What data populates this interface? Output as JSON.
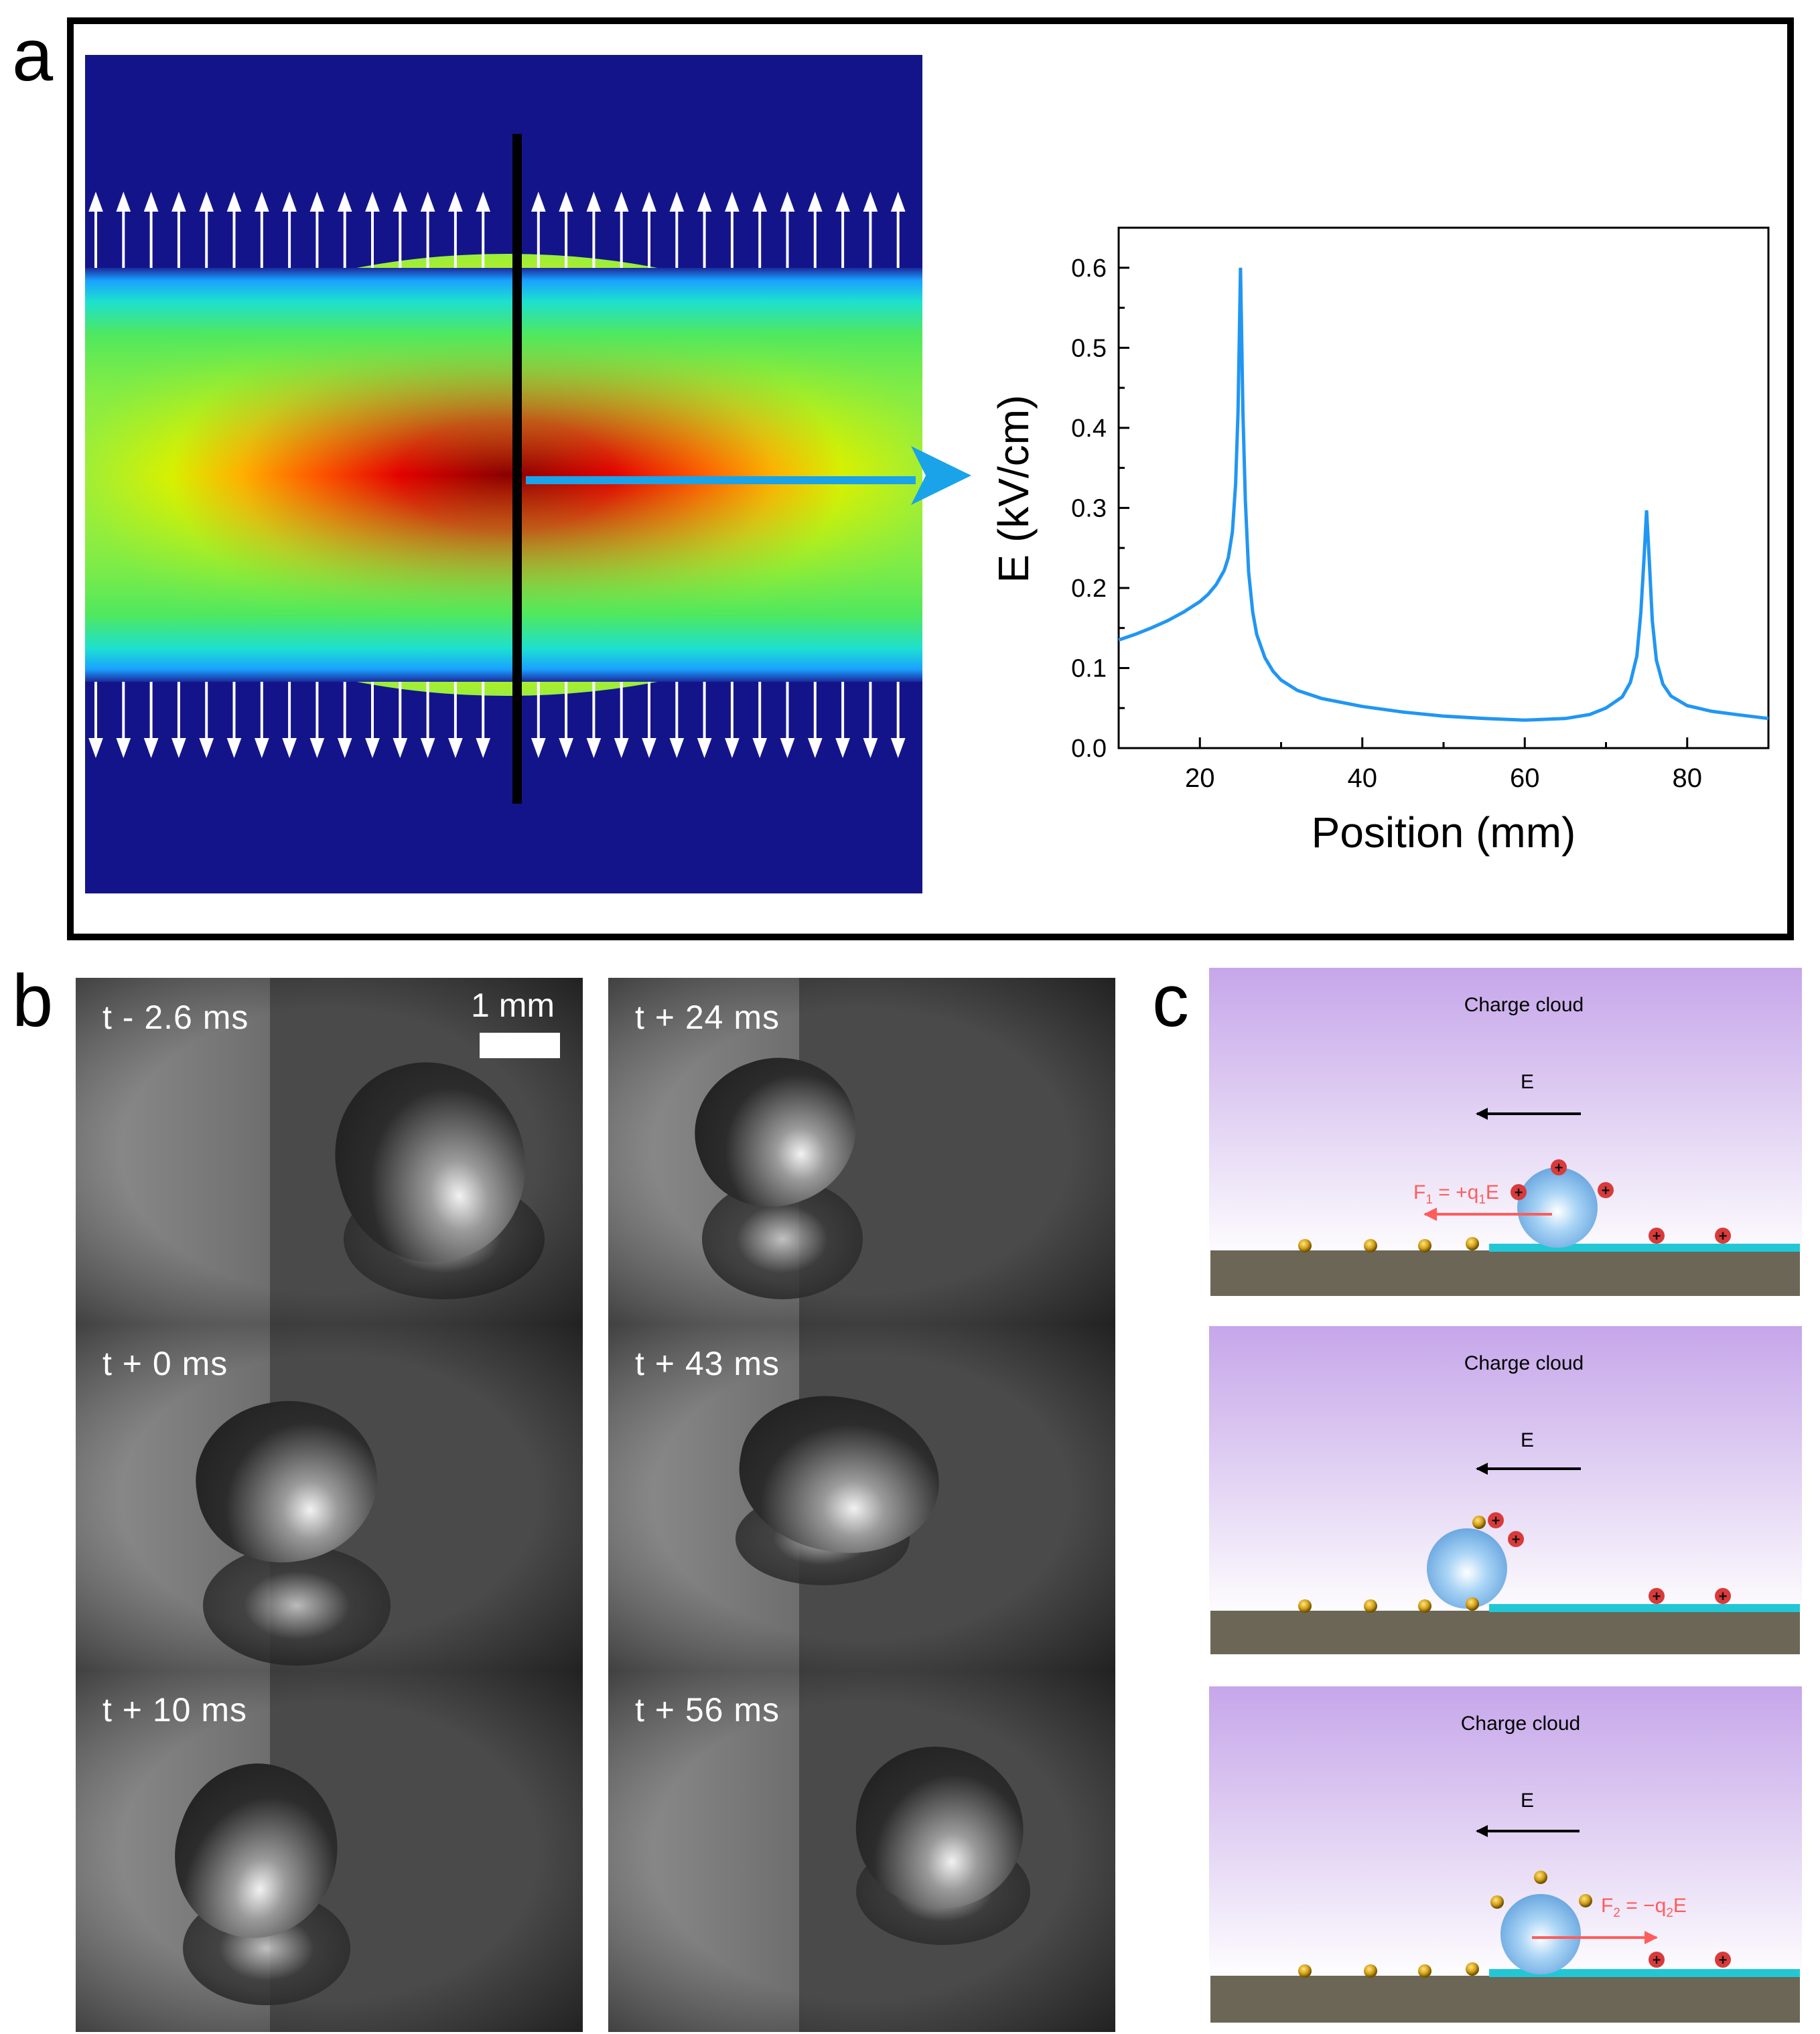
{
  "panel_labels": {
    "a": "a",
    "b": "b",
    "c": "c"
  },
  "colors": {
    "field_low": "#14148a",
    "curve": "#2196f3",
    "arrow": "#1aa3e8",
    "force": "#ff5c5c",
    "substrate": "#6b6656",
    "electrode": "#22c7d6",
    "cloud_top": "#c6a6ea"
  },
  "chart_data": {
    "type": "line",
    "title": "",
    "xlabel": "Position (mm)",
    "ylabel": "E (kV/cm)",
    "xlim": [
      10,
      90
    ],
    "ylim": [
      0,
      0.65
    ],
    "xticks": [
      "20",
      "40",
      "60",
      "80"
    ],
    "yticks": [
      "0.0",
      "0.1",
      "0.2",
      "0.3",
      "0.4",
      "0.5",
      "0.6"
    ],
    "series": [
      {
        "name": "E",
        "x": [
          10,
          12,
          14,
          16,
          18,
          20,
          21,
          22,
          23,
          23.5,
          24,
          24.4,
          24.7,
          25,
          25.3,
          25.6,
          26,
          26.5,
          27,
          28,
          29,
          30,
          32,
          35,
          40,
          45,
          50,
          55,
          60,
          65,
          68,
          70,
          72,
          73,
          73.8,
          74.3,
          74.7,
          75,
          75.3,
          75.7,
          76.2,
          77,
          78,
          80,
          83,
          86,
          90
        ],
        "y": [
          0.135,
          0.142,
          0.15,
          0.159,
          0.17,
          0.183,
          0.192,
          0.204,
          0.222,
          0.238,
          0.27,
          0.33,
          0.42,
          0.6,
          0.42,
          0.31,
          0.22,
          0.17,
          0.142,
          0.113,
          0.096,
          0.085,
          0.072,
          0.062,
          0.052,
          0.045,
          0.04,
          0.037,
          0.035,
          0.037,
          0.042,
          0.05,
          0.064,
          0.082,
          0.115,
          0.17,
          0.24,
          0.297,
          0.24,
          0.16,
          0.11,
          0.08,
          0.065,
          0.053,
          0.046,
          0.042,
          0.037
        ]
      }
    ]
  },
  "panel_b": {
    "scale_label": "1 mm",
    "frames": [
      {
        "time": "t - 2.6 ms"
      },
      {
        "time": "t + 24 ms"
      },
      {
        "time": "t + 0 ms"
      },
      {
        "time": "t + 43 ms"
      },
      {
        "time": "t + 10 ms"
      },
      {
        "time": "t + 56 ms"
      }
    ]
  },
  "panel_c": {
    "cloud_label": "Charge cloud",
    "field_label": "E",
    "force1": {
      "prefix": "F",
      "sub1": "1",
      "mid": " = +q",
      "sub2": "1",
      "suffix": "E"
    },
    "force2": {
      "prefix": "F",
      "sub1": "2",
      "mid": " = −q",
      "sub2": "2",
      "suffix": "E"
    },
    "plus": "+"
  }
}
